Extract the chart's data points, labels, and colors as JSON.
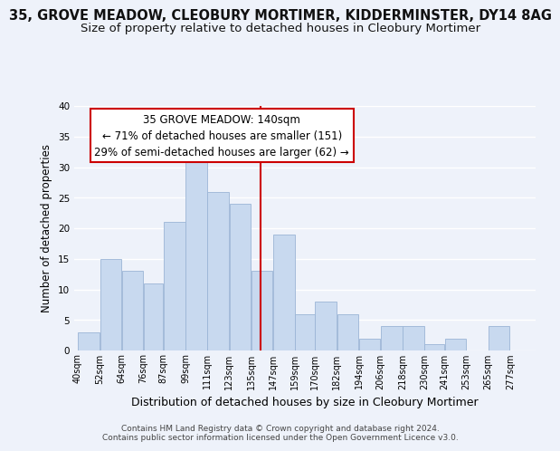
{
  "title": "35, GROVE MEADOW, CLEOBURY MORTIMER, KIDDERMINSTER, DY14 8AG",
  "subtitle": "Size of property relative to detached houses in Cleobury Mortimer",
  "xlabel": "Distribution of detached houses by size in Cleobury Mortimer",
  "ylabel": "Number of detached properties",
  "bar_left_edges": [
    40,
    52,
    64,
    76,
    87,
    99,
    111,
    123,
    135,
    147,
    159,
    170,
    182,
    194,
    206,
    218,
    230,
    241,
    253,
    265
  ],
  "bar_widths": [
    12,
    12,
    12,
    11,
    12,
    12,
    12,
    12,
    12,
    12,
    11,
    12,
    12,
    12,
    12,
    12,
    11,
    12,
    12,
    12
  ],
  "bar_heights": [
    3,
    15,
    13,
    11,
    21,
    32,
    26,
    24,
    13,
    19,
    6,
    8,
    6,
    2,
    4,
    4,
    1,
    2,
    0,
    4
  ],
  "tick_labels": [
    "40sqm",
    "52sqm",
    "64sqm",
    "76sqm",
    "87sqm",
    "99sqm",
    "111sqm",
    "123sqm",
    "135sqm",
    "147sqm",
    "159sqm",
    "170sqm",
    "182sqm",
    "194sqm",
    "206sqm",
    "218sqm",
    "230sqm",
    "241sqm",
    "253sqm",
    "265sqm",
    "277sqm"
  ],
  "tick_positions": [
    40,
    52,
    64,
    76,
    87,
    99,
    111,
    123,
    135,
    147,
    159,
    170,
    182,
    194,
    206,
    218,
    230,
    241,
    253,
    265,
    277
  ],
  "bar_color": "#c8d9ef",
  "bar_edgecolor": "#9bb5d6",
  "vline_x": 140,
  "vline_color": "#cc0000",
  "annotation_line1": "35 GROVE MEADOW: 140sqm",
  "annotation_line2": "← 71% of detached houses are smaller (151)",
  "annotation_line3": "29% of semi-detached houses are larger (62) →",
  "annotation_box_color": "#ffffff",
  "annotation_box_edgecolor": "#cc0000",
  "ylim": [
    0,
    40
  ],
  "yticks": [
    0,
    5,
    10,
    15,
    20,
    25,
    30,
    35,
    40
  ],
  "xlim_left": 38,
  "xlim_right": 291,
  "background_color": "#eef2fa",
  "grid_color": "#ffffff",
  "footer_line1": "Contains HM Land Registry data © Crown copyright and database right 2024.",
  "footer_line2": "Contains public sector information licensed under the Open Government Licence v3.0.",
  "title_fontsize": 10.5,
  "subtitle_fontsize": 9.5,
  "xlabel_fontsize": 9,
  "ylabel_fontsize": 8.5,
  "annotation_fontsize": 8.5,
  "tick_fontsize": 7,
  "footer_fontsize": 6.5
}
